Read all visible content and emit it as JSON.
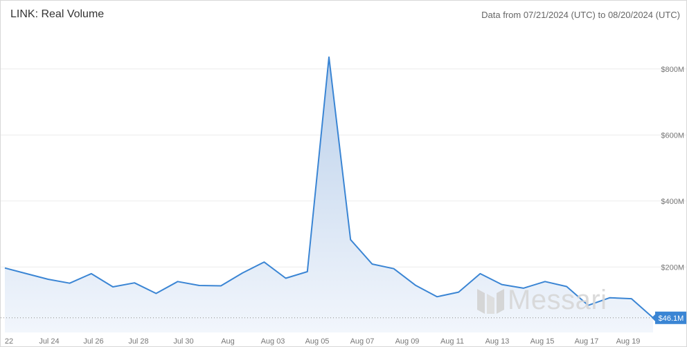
{
  "header": {
    "title": "LINK: Real Volume",
    "date_range": "Data from 07/21/2024 (UTC) to 08/20/2024 (UTC)"
  },
  "watermark": {
    "logo": "messari-logo-icon",
    "text": "Messari"
  },
  "colors": {
    "line": "#3a85d4",
    "fill_top": "#b9cfea",
    "fill_bottom": "#f2f6fc",
    "grid": "#ececec",
    "last_badge": "#3a85d4"
  },
  "chart_data": {
    "type": "area",
    "title": "LINK: Real Volume",
    "x": [
      "Jul 21",
      "Jul 22",
      "Jul 23",
      "Jul 24",
      "Jul 25",
      "Jul 26",
      "Jul 27",
      "Jul 28",
      "Jul 29",
      "Jul 30",
      "Jul 31",
      "Aug 01",
      "Aug 02",
      "Aug 03",
      "Aug 04",
      "Aug 05",
      "Aug 06",
      "Aug 07",
      "Aug 08",
      "Aug 09",
      "Aug 10",
      "Aug 11",
      "Aug 12",
      "Aug 13",
      "Aug 14",
      "Aug 15",
      "Aug 16",
      "Aug 17",
      "Aug 18",
      "Aug 19",
      "Aug 20"
    ],
    "series": [
      {
        "values": [
          197,
          180,
          163,
          151,
          180,
          140,
          152,
          120,
          156,
          144,
          143,
          182,
          215,
          166,
          186,
          836,
          283,
          209,
          195,
          145,
          110,
          124,
          180,
          147,
          136,
          156,
          141,
          84,
          107,
          104,
          46.1
        ]
      }
    ],
    "x_tick_labels": [
      "22",
      "Jul 24",
      "Jul 26",
      "Jul 28",
      "Jul 30",
      "Aug",
      "Aug 03",
      "Aug 05",
      "Aug 07",
      "Aug 09",
      "Aug 11",
      "Aug 13",
      "Aug 15",
      "Aug 17",
      "Aug 19"
    ],
    "y_tick_labels": [
      "$200M",
      "$400M",
      "$600M",
      "$800M"
    ],
    "y_ticks": [
      200,
      400,
      600,
      800
    ],
    "ylim": [
      19.3,
      880
    ],
    "last_value_label": "$46.1M",
    "grid": true,
    "legend": "none"
  }
}
